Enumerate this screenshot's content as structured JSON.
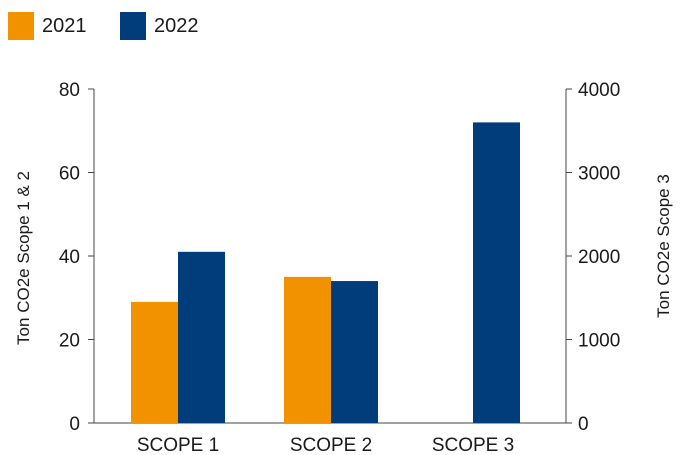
{
  "chart_data": {
    "type": "bar",
    "categories": [
      "SCOPE 1",
      "SCOPE 2",
      "SCOPE 3"
    ],
    "series": [
      {
        "name": "2021",
        "color": "#F39200",
        "values": [
          29,
          35,
          null
        ],
        "axis": "left"
      },
      {
        "name": "2022",
        "color": "#003D7A",
        "values": [
          41,
          34,
          3600
        ],
        "value_axes": [
          "left",
          "left",
          "right"
        ]
      }
    ],
    "left_axis": {
      "label": "Ton CO2e Scope 1 & 2",
      "ticks": [
        "0",
        "20",
        "40",
        "60",
        "80"
      ],
      "ylim": [
        0,
        80
      ]
    },
    "right_axis": {
      "label": "Ton CO2e Scope 3",
      "ticks": [
        "0",
        "1000",
        "2000",
        "3000",
        "4000"
      ],
      "ylim": [
        0,
        4000
      ]
    },
    "legend_placement": "top-left",
    "grid": false
  }
}
